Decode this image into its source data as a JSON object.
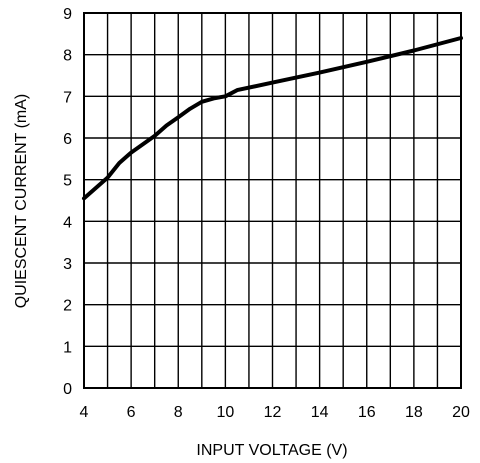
{
  "chart_data": {
    "type": "line",
    "title": "",
    "xlabel": "INPUT VOLTAGE (V)",
    "ylabel": "QUIESCENT CURRENT (mA)",
    "xlim": [
      4,
      20
    ],
    "ylim": [
      0,
      9
    ],
    "x_ticks": [
      "4",
      "6",
      "8",
      "10",
      "12",
      "14",
      "16",
      "18",
      "20"
    ],
    "y_ticks": [
      "0",
      "1",
      "2",
      "3",
      "4",
      "5",
      "6",
      "7",
      "8",
      "9"
    ],
    "grid": true,
    "legend": "none",
    "line_color": "#000000",
    "series": [
      {
        "x": [
          4.0,
          4.5,
          5.0,
          5.5,
          6.0,
          6.5,
          7.0,
          7.5,
          8.0,
          8.5,
          9.0,
          9.5,
          10.0,
          10.5,
          12.0,
          14.0,
          16.0,
          18.0,
          20.0
        ],
        "y": [
          4.55,
          4.8,
          5.05,
          5.4,
          5.65,
          5.85,
          6.05,
          6.3,
          6.5,
          6.7,
          6.87,
          6.95,
          7.0,
          7.15,
          7.33,
          7.57,
          7.83,
          8.1,
          8.4
        ]
      }
    ]
  }
}
